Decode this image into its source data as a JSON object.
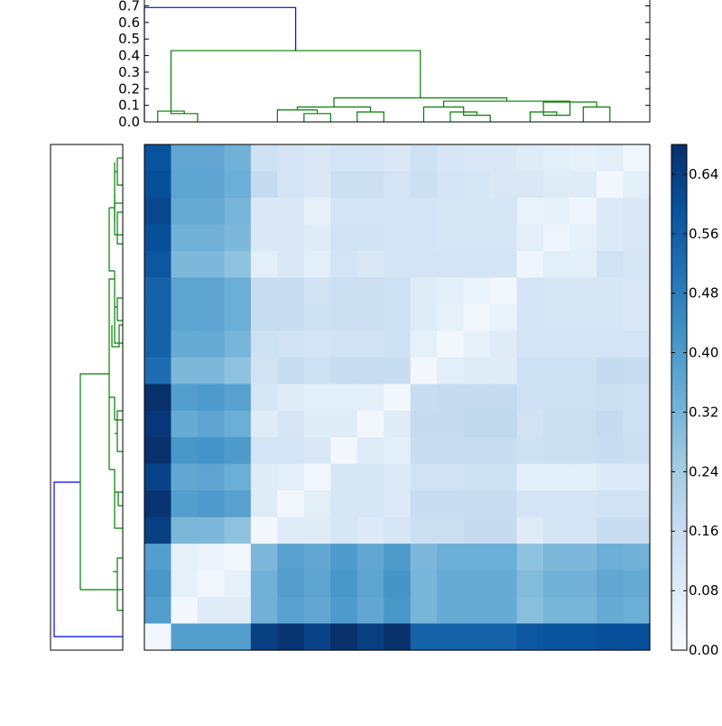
{
  "chart_data": [
    {
      "type": "dendrogram",
      "orientation": "top",
      "ylim": [
        0,
        0.7
      ],
      "yticks": [
        "0.0",
        "0.1",
        "0.2",
        "0.3",
        "0.4",
        "0.5",
        "0.6",
        "0.7"
      ],
      "leaf_count": 19,
      "colors": {
        "above_threshold": "#0000ff",
        "cluster": "#008000"
      },
      "links": [
        {
          "a": 0.5,
          "b": 1.5,
          "h": 0.05,
          "c": "g"
        },
        {
          "a": 0.0,
          "b": 1.0,
          "h": 0.065,
          "c": "g"
        },
        {
          "a": 5.5,
          "b": 6.5,
          "h": 0.05,
          "c": "g"
        },
        {
          "a": 4.5,
          "b": 6.0,
          "h": 0.072,
          "c": "g"
        },
        {
          "a": 7.5,
          "b": 8.5,
          "h": 0.06,
          "c": "g"
        },
        {
          "a": 5.25,
          "b": 8.0,
          "h": 0.09,
          "c": "g"
        },
        {
          "a": 11.5,
          "b": 12.5,
          "h": 0.04,
          "c": "g"
        },
        {
          "a": 11.0,
          "b": 12.0,
          "h": 0.06,
          "c": "g"
        },
        {
          "a": 10.0,
          "b": 11.5,
          "h": 0.09,
          "c": "g"
        },
        {
          "a": 14.5,
          "b": 15.5,
          "h": 0.04,
          "c": "g"
        },
        {
          "a": 14.0,
          "b": 15.0,
          "h": 0.06,
          "c": "g"
        },
        {
          "a": 16.0,
          "b": 17.0,
          "h": 0.09,
          "c": "g"
        },
        {
          "a": 14.5,
          "b": 16.5,
          "h": 0.12,
          "c": "g"
        },
        {
          "a": 10.75,
          "b": 15.5,
          "h": 0.125,
          "c": "g"
        },
        {
          "a": 6.625,
          "b": 13.125,
          "h": 0.145,
          "c": "g"
        },
        {
          "a": 0.5,
          "b": 9.875,
          "h": 0.43,
          "c": "g"
        },
        {
          "a": -0.5,
          "b": 5.1875,
          "h": 0.69,
          "c": "b"
        }
      ]
    },
    {
      "type": "dendrogram",
      "orientation": "left",
      "leaf_count": 19,
      "colors": {
        "above_threshold": "#0000ff",
        "cluster": "#008000"
      }
    },
    {
      "type": "heatmap",
      "rows": 19,
      "cols": 19,
      "colormap": "Blues",
      "vmin": 0,
      "vmax": 0.68,
      "colorbar_ticks": [
        "0.00",
        "0.08",
        "0.16",
        "0.24",
        "0.32",
        "0.40",
        "0.48",
        "0.56",
        "0.64"
      ],
      "values": [
        [
          0.59,
          0.36,
          0.36,
          0.33,
          0.14,
          0.12,
          0.1,
          0.12,
          0.12,
          0.1,
          0.14,
          0.11,
          0.1,
          0.1,
          0.08,
          0.07,
          0.06,
          0.07,
          0.02
        ],
        [
          0.6,
          0.37,
          0.37,
          0.34,
          0.17,
          0.12,
          0.1,
          0.15,
          0.15,
          0.12,
          0.15,
          0.12,
          0.11,
          0.1,
          0.1,
          0.08,
          0.08,
          0.02,
          0.07
        ],
        [
          0.62,
          0.35,
          0.35,
          0.32,
          0.1,
          0.1,
          0.06,
          0.12,
          0.12,
          0.12,
          0.12,
          0.11,
          0.11,
          0.11,
          0.05,
          0.06,
          0.03,
          0.09,
          0.1
        ],
        [
          0.6,
          0.33,
          0.33,
          0.31,
          0.1,
          0.1,
          0.08,
          0.13,
          0.13,
          0.12,
          0.12,
          0.11,
          0.11,
          0.11,
          0.07,
          0.03,
          0.06,
          0.09,
          0.1
        ],
        [
          0.58,
          0.31,
          0.31,
          0.28,
          0.07,
          0.1,
          0.07,
          0.12,
          0.1,
          0.12,
          0.12,
          0.12,
          0.12,
          0.12,
          0.03,
          0.07,
          0.07,
          0.13,
          0.11
        ],
        [
          0.55,
          0.37,
          0.37,
          0.34,
          0.16,
          0.16,
          0.13,
          0.15,
          0.15,
          0.14,
          0.08,
          0.07,
          0.04,
          0.02,
          0.12,
          0.11,
          0.11,
          0.11,
          0.1
        ],
        [
          0.55,
          0.37,
          0.37,
          0.34,
          0.16,
          0.16,
          0.14,
          0.15,
          0.15,
          0.14,
          0.08,
          0.06,
          0.02,
          0.05,
          0.12,
          0.11,
          0.11,
          0.11,
          0.1
        ],
        [
          0.55,
          0.35,
          0.35,
          0.32,
          0.14,
          0.13,
          0.12,
          0.13,
          0.13,
          0.14,
          0.06,
          0.02,
          0.06,
          0.08,
          0.12,
          0.12,
          0.12,
          0.12,
          0.12
        ],
        [
          0.52,
          0.31,
          0.31,
          0.28,
          0.13,
          0.16,
          0.14,
          0.16,
          0.16,
          0.16,
          0.02,
          0.07,
          0.08,
          0.08,
          0.14,
          0.14,
          0.14,
          0.17,
          0.16
        ],
        [
          0.68,
          0.39,
          0.4,
          0.38,
          0.11,
          0.08,
          0.07,
          0.07,
          0.07,
          0.02,
          0.16,
          0.17,
          0.17,
          0.17,
          0.14,
          0.14,
          0.14,
          0.15,
          0.14
        ],
        [
          0.66,
          0.35,
          0.37,
          0.34,
          0.08,
          0.11,
          0.08,
          0.08,
          0.02,
          0.08,
          0.17,
          0.17,
          0.18,
          0.18,
          0.13,
          0.15,
          0.15,
          0.17,
          0.14
        ],
        [
          0.69,
          0.41,
          0.42,
          0.4,
          0.12,
          0.12,
          0.1,
          0.02,
          0.08,
          0.07,
          0.16,
          0.16,
          0.16,
          0.16,
          0.14,
          0.15,
          0.15,
          0.16,
          0.15
        ],
        [
          0.63,
          0.36,
          0.37,
          0.34,
          0.08,
          0.07,
          0.02,
          0.11,
          0.11,
          0.09,
          0.13,
          0.13,
          0.14,
          0.14,
          0.07,
          0.07,
          0.07,
          0.09,
          0.09
        ],
        [
          0.67,
          0.39,
          0.4,
          0.38,
          0.08,
          0.02,
          0.07,
          0.11,
          0.11,
          0.09,
          0.16,
          0.16,
          0.16,
          0.16,
          0.12,
          0.12,
          0.12,
          0.13,
          0.13
        ],
        [
          0.64,
          0.31,
          0.31,
          0.28,
          0.02,
          0.08,
          0.08,
          0.11,
          0.09,
          0.11,
          0.15,
          0.15,
          0.17,
          0.17,
          0.08,
          0.12,
          0.12,
          0.16,
          0.16
        ],
        [
          0.39,
          0.06,
          0.04,
          0.02,
          0.31,
          0.38,
          0.36,
          0.4,
          0.36,
          0.4,
          0.31,
          0.34,
          0.34,
          0.34,
          0.28,
          0.31,
          0.31,
          0.34,
          0.33
        ],
        [
          0.41,
          0.06,
          0.02,
          0.06,
          0.33,
          0.39,
          0.37,
          0.41,
          0.37,
          0.42,
          0.32,
          0.35,
          0.35,
          0.35,
          0.3,
          0.33,
          0.33,
          0.36,
          0.35
        ],
        [
          0.39,
          0.02,
          0.08,
          0.08,
          0.33,
          0.38,
          0.36,
          0.4,
          0.36,
          0.41,
          0.32,
          0.35,
          0.35,
          0.35,
          0.29,
          0.32,
          0.32,
          0.35,
          0.34
        ],
        [
          0.02,
          0.39,
          0.39,
          0.39,
          0.64,
          0.67,
          0.63,
          0.68,
          0.64,
          0.69,
          0.55,
          0.55,
          0.55,
          0.55,
          0.58,
          0.59,
          0.59,
          0.6,
          0.6
        ]
      ]
    }
  ]
}
